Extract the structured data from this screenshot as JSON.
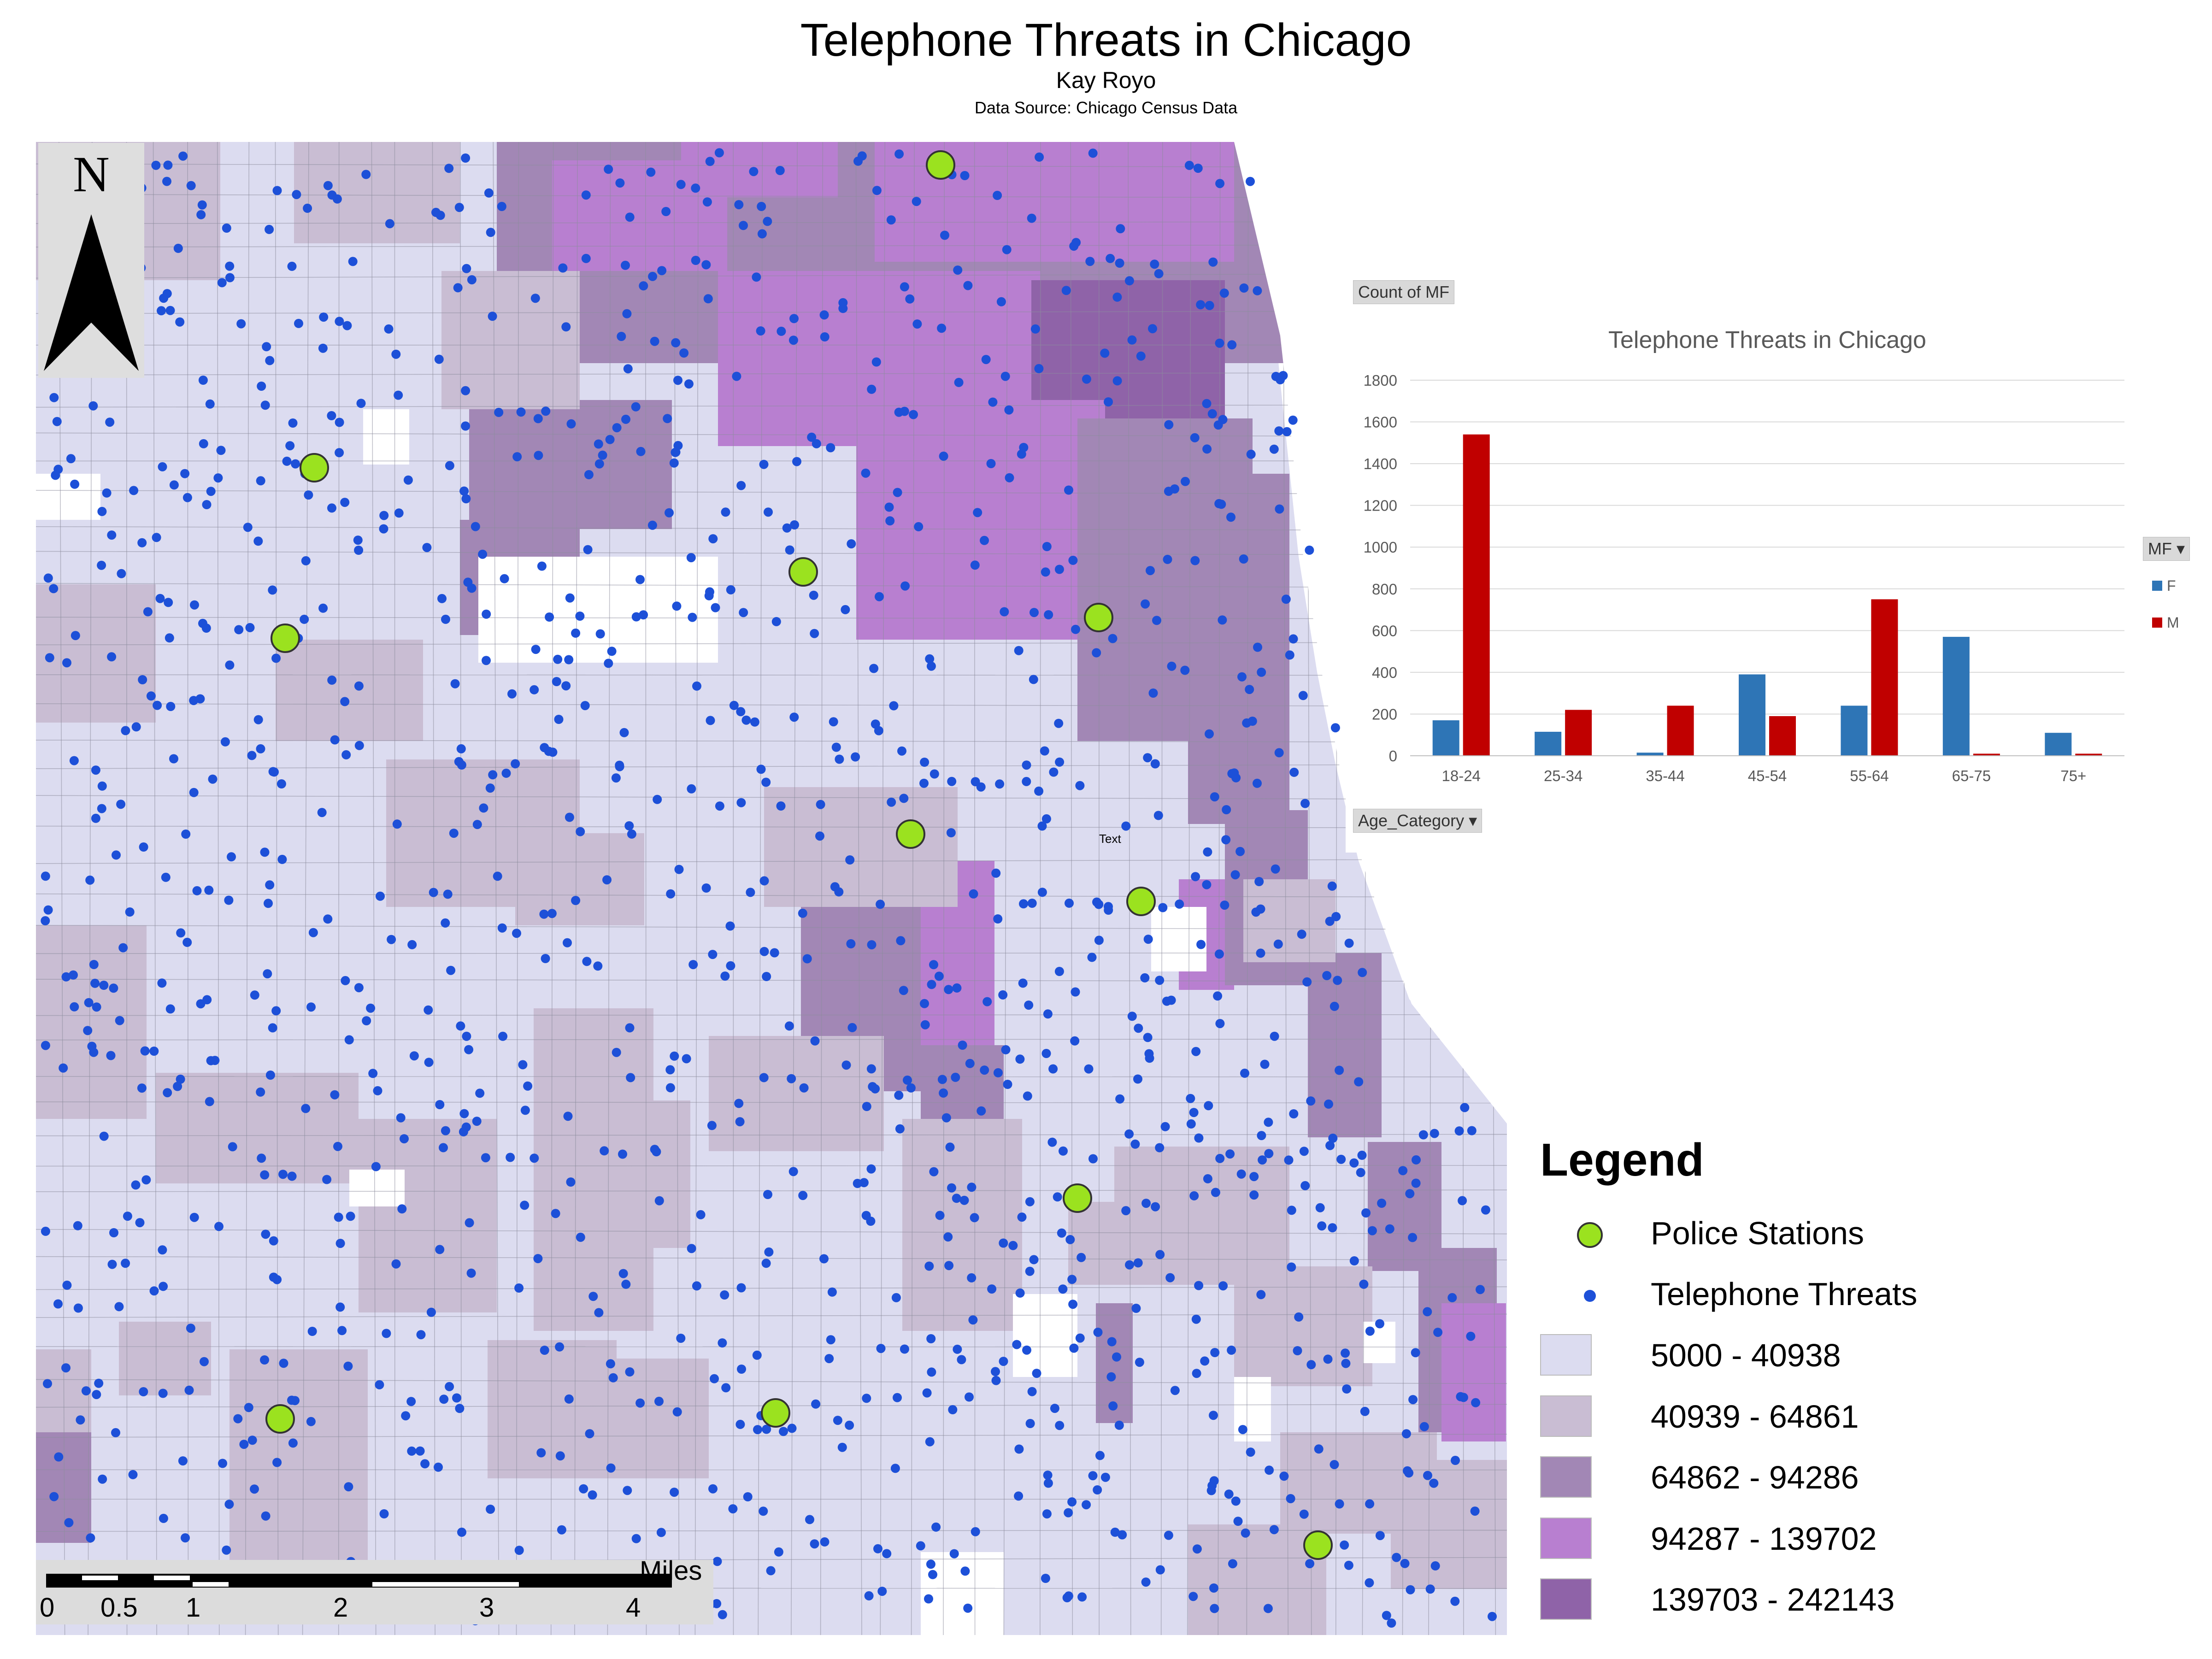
{
  "header": {
    "title": "Telephone Threats in Chicago",
    "author": "Kay Royo",
    "source": "Data Source: Chicago Census Data"
  },
  "map": {
    "north_label": "N",
    "annotation_text": "Text",
    "colors": {
      "class1": "#dcdcf0",
      "class2": "#c9bdd3",
      "class3": "#a287b5",
      "class4": "#b87fd0",
      "class5": "#8f63a8",
      "threat_dot": "#1d50d8",
      "station": "#9be21f",
      "empty": "#ffffff"
    },
    "scalebar": {
      "unit": "Miles",
      "ticks": [
        "0",
        "0.5",
        "1",
        "2",
        "3",
        "4"
      ]
    }
  },
  "legend": {
    "title": "Legend",
    "items": [
      {
        "label": "Police Stations",
        "symbol": "circle",
        "color": "#9be21f"
      },
      {
        "label": "Telephone Threats",
        "symbol": "dot",
        "color": "#1d50d8"
      },
      {
        "label": "5000 - 40938",
        "symbol": "swatch",
        "color": "#dcdcf0"
      },
      {
        "label": "40939 - 64861",
        "symbol": "swatch",
        "color": "#c9bdd3"
      },
      {
        "label": "64862 - 94286",
        "symbol": "swatch",
        "color": "#a287b5"
      },
      {
        "label": "94287 - 139702",
        "symbol": "swatch",
        "color": "#b87fd0"
      },
      {
        "label": "139703 - 242143",
        "symbol": "swatch",
        "color": "#8f63a8"
      }
    ]
  },
  "chart_data": {
    "type": "bar",
    "title": "Telephone Threats in Chicago",
    "value_field_button": "Count of MF",
    "axis_field_button": "Age_Category",
    "legend_field_button": "MF",
    "categories": [
      "18-24",
      "25-34",
      "35-44",
      "45-54",
      "55-64",
      "65-75",
      "75+"
    ],
    "series": [
      {
        "name": "F",
        "color": "#2e75b6",
        "values": [
          170,
          115,
          15,
          390,
          240,
          570,
          110
        ]
      },
      {
        "name": "M",
        "color": "#c00000",
        "values": [
          1540,
          220,
          240,
          190,
          750,
          10,
          10
        ]
      }
    ],
    "ylim": [
      0,
      1800
    ],
    "yticks": [
      "0",
      "200",
      "400",
      "600",
      "800",
      "1000",
      "1200",
      "1400",
      "1600",
      "1800"
    ],
    "grid": true,
    "legend_position": "right"
  }
}
